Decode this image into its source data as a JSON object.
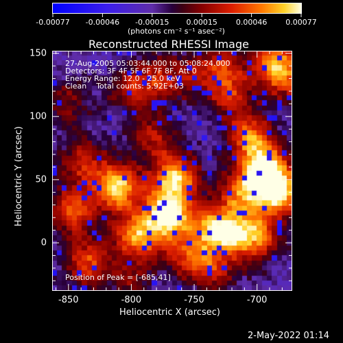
{
  "colorbar": {
    "tick_labels": [
      "-0.00077",
      "-0.00046",
      "-0.00015",
      "0.00015",
      "0.00046",
      "0.00077"
    ],
    "min": -0.00077,
    "max": 0.00077,
    "units_label": "(photons cm⁻² s⁻¹ asec⁻²)"
  },
  "chart_data": {
    "type": "heatmap",
    "title": "Reconstructed RHESSI Image",
    "xlabel": "Heliocentric X (arcsec)",
    "ylabel": "Heliocentric Y (arcsec)",
    "xlim": [
      -863,
      -672
    ],
    "ylim": [
      -38,
      152
    ],
    "x_ticks": [
      "-850",
      "-800",
      "-750",
      "-700"
    ],
    "y_ticks": [
      "0",
      "50",
      "100",
      "150"
    ],
    "annotations": [
      "27-Aug-2005 05:03:44.000 to 05:08:24.000",
      "Detectors: 3F 4F 5F 6F 7F 8F, Att 0",
      "Energy Range: 12.0 - 25.0 keV",
      "Clean    Total counts: 5.92E+03"
    ],
    "peak_label": "Position of Peak = [-685,41]",
    "peak": [
      -685,
      41
    ],
    "hotspots": [
      {
        "x": -810,
        "y": 44,
        "strength": 0.85
      },
      {
        "x": -770,
        "y": 22,
        "strength": 1.0
      },
      {
        "x": -765,
        "y": 52,
        "strength": 0.8
      },
      {
        "x": -795,
        "y": 5,
        "strength": 0.75
      },
      {
        "x": -845,
        "y": 26,
        "strength": 0.6
      },
      {
        "x": -838,
        "y": 63,
        "strength": 0.45
      },
      {
        "x": -835,
        "y": -15,
        "strength": 0.55
      },
      {
        "x": -782,
        "y": 84,
        "strength": 0.4
      },
      {
        "x": -735,
        "y": 11,
        "strength": 0.6
      },
      {
        "x": -722,
        "y": 7,
        "strength": 0.5
      },
      {
        "x": -712,
        "y": 37,
        "strength": 0.55
      },
      {
        "x": -700,
        "y": 4,
        "strength": 0.65
      },
      {
        "x": -685,
        "y": 41,
        "strength": 1.0
      },
      {
        "x": -695,
        "y": 60,
        "strength": 0.8
      },
      {
        "x": -705,
        "y": 84,
        "strength": 0.6
      },
      {
        "x": -678,
        "y": 132,
        "strength": 0.55
      },
      {
        "x": -688,
        "y": 145,
        "strength": 0.5
      },
      {
        "x": -727,
        "y": 138,
        "strength": 0.45
      },
      {
        "x": -720,
        "y": 115,
        "strength": 0.4
      },
      {
        "x": -780,
        "y": 130,
        "strength": 0.4
      },
      {
        "x": -752,
        "y": 130,
        "strength": 0.3
      },
      {
        "x": -800,
        "y": 120,
        "strength": 0.35
      },
      {
        "x": -755,
        "y": -10,
        "strength": 0.45
      },
      {
        "x": -735,
        "y": -22,
        "strength": 0.4
      },
      {
        "x": -800,
        "y": -30,
        "strength": 0.3
      },
      {
        "x": -850,
        "y": 110,
        "strength": 0.3
      }
    ]
  },
  "timestamp": "2-May-2022 01:14"
}
